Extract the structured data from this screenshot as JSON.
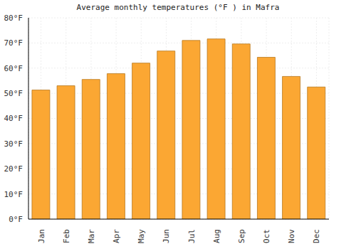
{
  "chart_data": {
    "type": "bar",
    "title": "Average monthly temperatures (°F ) in Mafra",
    "categories": [
      "Jan",
      "Feb",
      "Mar",
      "Apr",
      "May",
      "Jun",
      "Jul",
      "Aug",
      "Sep",
      "Oct",
      "Nov",
      "Dec"
    ],
    "values": [
      51.3,
      53,
      55.5,
      57.8,
      62,
      66.8,
      71,
      71.6,
      69.6,
      64.3,
      56.7,
      52.5
    ],
    "color": "#fba733",
    "ylim": [
      0,
      80
    ],
    "yticks": [
      {
        "value": 0,
        "label": "0°F"
      },
      {
        "value": 10,
        "label": "10°F"
      },
      {
        "value": 20,
        "label": "20°F"
      },
      {
        "value": 30,
        "label": "30°F"
      },
      {
        "value": 40,
        "label": "40°F"
      },
      {
        "value": 50,
        "label": "50°F"
      },
      {
        "value": 60,
        "label": "60°F"
      },
      {
        "value": 70,
        "label": "70°F"
      },
      {
        "value": 80,
        "label": "80°F"
      }
    ],
    "grid": true
  }
}
